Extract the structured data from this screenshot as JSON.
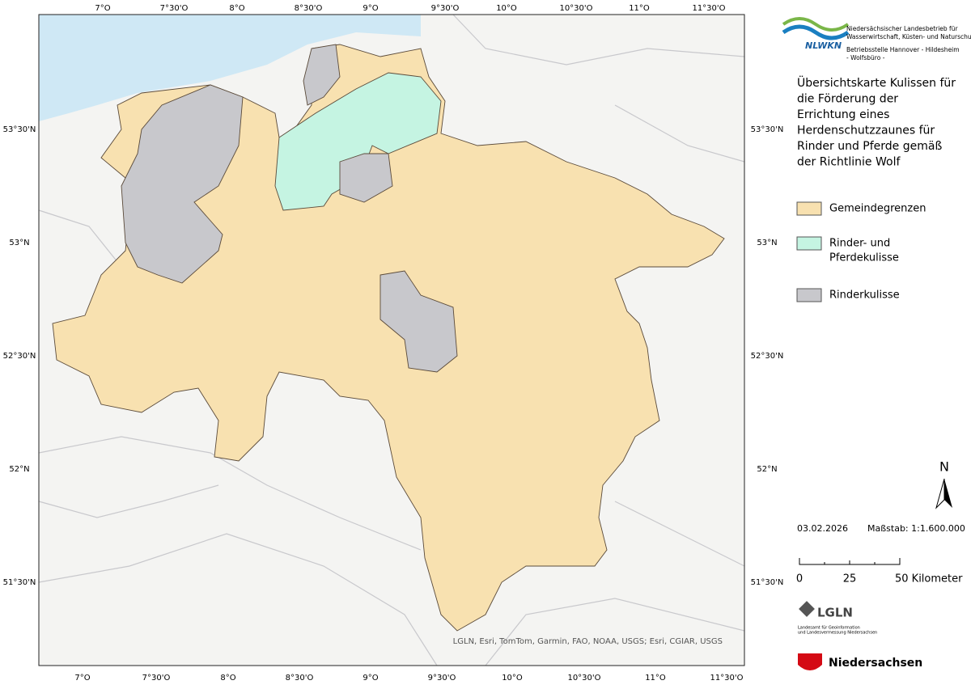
{
  "map": {
    "lon_labels": [
      "7°O",
      "7°30'O",
      "8°O",
      "8°30'O",
      "9°O",
      "9°30'O",
      "10°O",
      "10°30'O",
      "11°O",
      "11°30'O"
    ],
    "lat_labels": [
      "53°30'N",
      "53°N",
      "52°30'N",
      "52°N",
      "51°30'N"
    ],
    "attribution": "LGLN, Esri, TomTom, Garmin, FAO, NOAA, USGS; Esri, CGIAR, USGS"
  },
  "header": {
    "logo": "NLWKN",
    "org_lines": [
      "Niedersächsischer Landesbetrieb für",
      "Wasserwirtschaft, Küsten- und Naturschutz"
    ],
    "office": "Betriebsstelle Hannover - Hildesheim",
    "unit": "- Wolfsbüro -"
  },
  "title_lines": [
    "Übersichtskarte Kulissen für",
    "die Förderung der",
    "Errichtung eines",
    "Herdenschutzzaunes für",
    "Rinder und Pferde gemäß",
    "der Richtlinie Wolf"
  ],
  "legend": [
    {
      "label_lines": [
        "Gemeindegrenzen"
      ],
      "color": "#f8e1b0"
    },
    {
      "label_lines": [
        "Rinder- und",
        "Pferdekulisse"
      ],
      "color": "#c5f4e2"
    },
    {
      "label_lines": [
        "Rinderkulisse"
      ],
      "color": "#c8c8cc"
    }
  ],
  "north": "N",
  "date": "03.02.2026",
  "scale_text": "Maßstab: 1:1.600.000",
  "scale_labels": [
    "0",
    "25",
    "50 Kilometer"
  ],
  "lgln": {
    "name": "LGLN",
    "sub_lines": [
      "Landesamt für Geoinformation",
      "und Landesvermessung Niedersachsen"
    ]
  },
  "state": "Niedersachsen"
}
